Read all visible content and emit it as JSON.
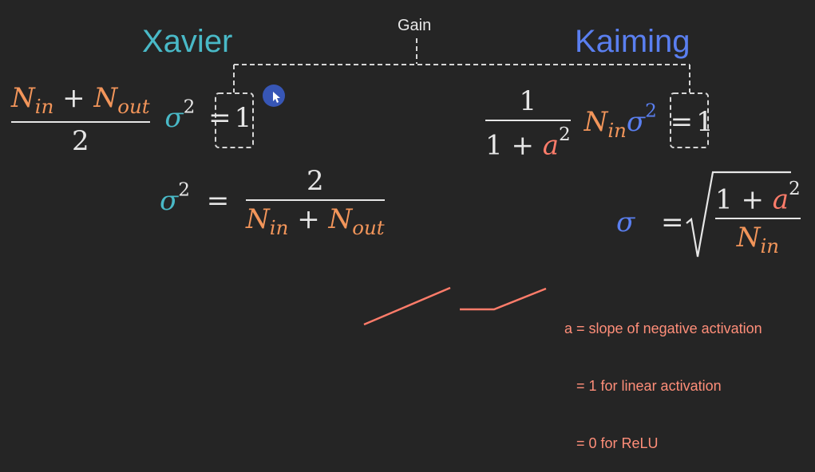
{
  "headings": {
    "xavier": "Xavier",
    "kaiming": "Kaiming",
    "gain": "Gain"
  },
  "colors": {
    "xavier": "#49b9c7",
    "kaiming": "#5a7ff0",
    "n_terms": "#f2955a",
    "a_term": "#ff7c6a",
    "text": "#e6e6e6",
    "note": "#ff8e79",
    "cursor": "#3b5fd0"
  },
  "symbols": {
    "N": "N",
    "in": "in",
    "out": "out",
    "plus": "+",
    "equals": "=",
    "sigma": "σ",
    "two": "2",
    "one": "1",
    "a": "a",
    "sq": "2"
  },
  "notes": {
    "line1": "a = slope of negative activation",
    "line2": "   = 1 for linear activation",
    "line3": "   = 0 for ReLU"
  },
  "icons": {
    "cursor": "mouse-pointer-icon",
    "sqrt": "square-root-radical",
    "plots": [
      "linear-activation-plot",
      "relu-activation-plot"
    ]
  }
}
